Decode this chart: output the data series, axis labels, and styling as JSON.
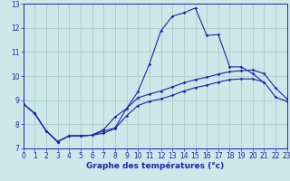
{
  "title": "Graphe des températures (°c)",
  "bg_color": "#cce8e8",
  "grid_color": "#aacccc",
  "line_color": "#2222aa",
  "x_min": 0,
  "x_max": 23,
  "y_min": 7,
  "y_max": 13,
  "line1_x": [
    0,
    1,
    2,
    3,
    4,
    5,
    6,
    7,
    8,
    9,
    10,
    11,
    12,
    13,
    14,
    15,
    16,
    17,
    18,
    19,
    20,
    21
  ],
  "line1_y": [
    8.85,
    8.45,
    7.73,
    7.28,
    7.52,
    7.52,
    7.55,
    7.72,
    7.85,
    8.65,
    9.35,
    10.5,
    11.87,
    12.48,
    12.62,
    12.82,
    11.68,
    11.72,
    10.38,
    10.38,
    10.1,
    9.72
  ],
  "line2_x": [
    0,
    1,
    2,
    3,
    4,
    5,
    6,
    7,
    8,
    9,
    10,
    11,
    12,
    13,
    14,
    15,
    16,
    17,
    18,
    19,
    20,
    21,
    22,
    23
  ],
  "line2_y": [
    8.85,
    8.45,
    7.73,
    7.28,
    7.52,
    7.52,
    7.55,
    7.78,
    8.3,
    8.65,
    9.1,
    9.25,
    9.38,
    9.55,
    9.72,
    9.85,
    9.95,
    10.08,
    10.18,
    10.22,
    10.25,
    10.1,
    9.5,
    9.05
  ],
  "line3_x": [
    0,
    1,
    2,
    3,
    4,
    5,
    6,
    7,
    8,
    9,
    10,
    11,
    12,
    13,
    14,
    15,
    16,
    17,
    18,
    19,
    20,
    21,
    22,
    23
  ],
  "line3_y": [
    8.85,
    8.45,
    7.73,
    7.28,
    7.52,
    7.52,
    7.55,
    7.63,
    7.82,
    8.35,
    8.78,
    8.95,
    9.05,
    9.2,
    9.38,
    9.52,
    9.62,
    9.75,
    9.85,
    9.88,
    9.88,
    9.75,
    9.12,
    8.95
  ],
  "tick_fontsize": 5.5,
  "label_fontsize": 6.5,
  "marker_size": 1.8,
  "lw": 0.8
}
